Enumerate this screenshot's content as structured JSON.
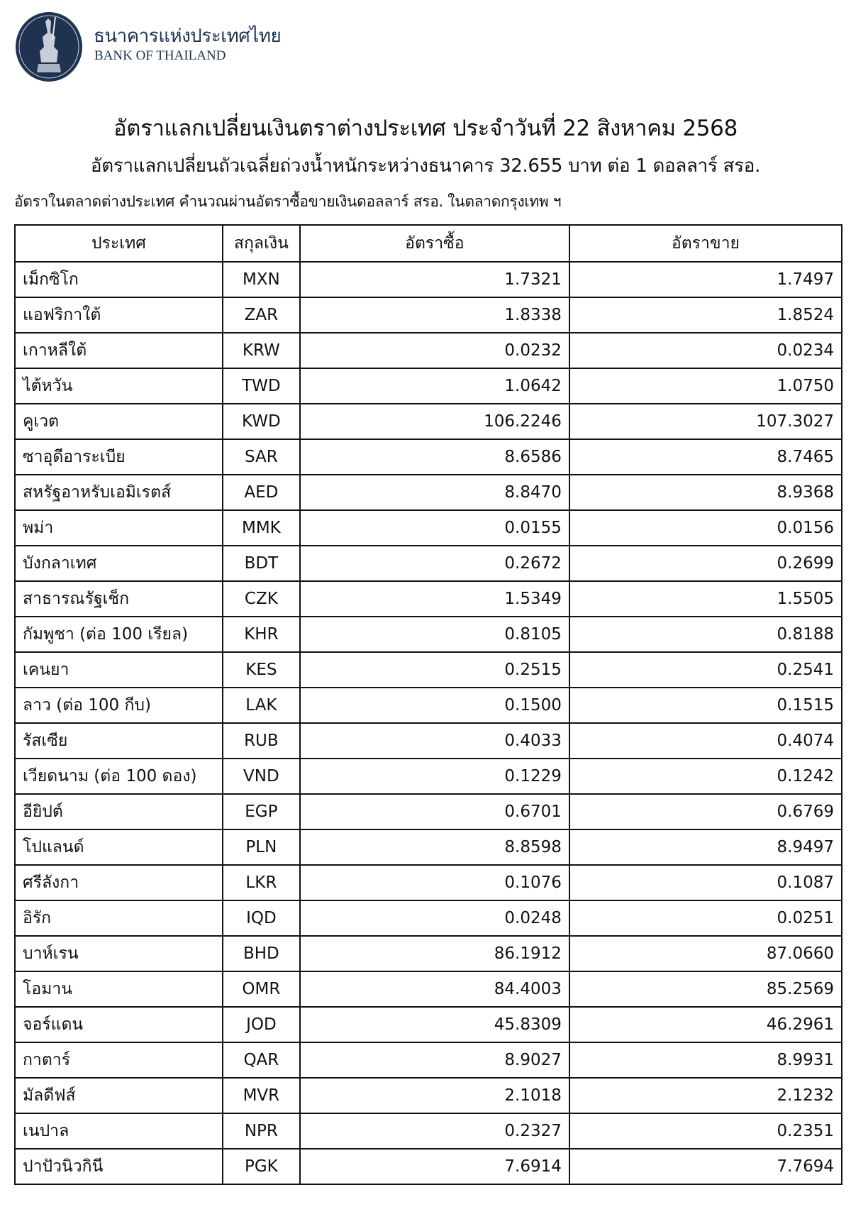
{
  "header": {
    "bank_name_th": "ธนาคารแห่งประเทศไทย",
    "bank_name_en": "BANK OF THAILAND",
    "logo_icon": "bank-of-thailand-seal",
    "brand_color": "#1f3350"
  },
  "title": "อัตราแลกเปลี่ยนเงินตราต่างประเทศ ประจำวันที่ 22 สิงหาคม 2568",
  "subtitle": "อัตราแลกเปลี่ยนถัวเฉลี่ยถ่วงน้ำหนักระหว่างธนาคาร 32.655 บาท ต่อ 1 ดอลลาร์ สรอ.",
  "note": "อัตราในตลาดต่างประเทศ คำนวณผ่านอัตราซื้อขายเงินดอลลาร์ สรอ. ในตลาดกรุงเทพ ฯ",
  "table": {
    "headers": [
      "ประเทศ",
      "สกุลเงิน",
      "อัตราซื้อ",
      "อัตราขาย"
    ],
    "rows": [
      [
        "เม็กซิโก",
        "MXN",
        "1.7321",
        "1.7497"
      ],
      [
        "แอฟริกาใต้",
        "ZAR",
        "1.8338",
        "1.8524"
      ],
      [
        "เกาหลีใต้",
        "KRW",
        "0.0232",
        "0.0234"
      ],
      [
        "ไต้หวัน",
        "TWD",
        "1.0642",
        "1.0750"
      ],
      [
        "คูเวต",
        "KWD",
        "106.2246",
        "107.3027"
      ],
      [
        "ซาอุดีอาระเบีย",
        "SAR",
        "8.6586",
        "8.7465"
      ],
      [
        "สหรัฐอาหรับเอมิเรตส์",
        "AED",
        "8.8470",
        "8.9368"
      ],
      [
        "พม่า",
        "MMK",
        "0.0155",
        "0.0156"
      ],
      [
        "บังกลาเทศ",
        "BDT",
        "0.2672",
        "0.2699"
      ],
      [
        "สาธารณรัฐเช็ก",
        "CZK",
        "1.5349",
        "1.5505"
      ],
      [
        "กัมพูชา (ต่อ 100 เรียล)",
        "KHR",
        "0.8105",
        "0.8188"
      ],
      [
        "เคนยา",
        "KES",
        "0.2515",
        "0.2541"
      ],
      [
        "ลาว (ต่อ 100 กีบ)",
        "LAK",
        "0.1500",
        "0.1515"
      ],
      [
        "รัสเซีย",
        "RUB",
        "0.4033",
        "0.4074"
      ],
      [
        "เวียดนาม (ต่อ 100 ดอง)",
        "VND",
        "0.1229",
        "0.1242"
      ],
      [
        "อียิปต์",
        "EGP",
        "0.6701",
        "0.6769"
      ],
      [
        "โปแลนด์",
        "PLN",
        "8.8598",
        "8.9497"
      ],
      [
        "ศรีลังกา",
        "LKR",
        "0.1076",
        "0.1087"
      ],
      [
        "อิรัก",
        "IQD",
        "0.0248",
        "0.0251"
      ],
      [
        "บาห์เรน",
        "BHD",
        "86.1912",
        "87.0660"
      ],
      [
        "โอมาน",
        "OMR",
        "84.4003",
        "85.2569"
      ],
      [
        "จอร์แดน",
        "JOD",
        "45.8309",
        "46.2961"
      ],
      [
        "กาตาร์",
        "QAR",
        "8.9027",
        "8.9931"
      ],
      [
        "มัลดีฟส์",
        "MVR",
        "2.1018",
        "2.1232"
      ],
      [
        "เนปาล",
        "NPR",
        "0.2327",
        "0.2351"
      ],
      [
        "ปาปัวนิวกินี",
        "PGK",
        "7.6914",
        "7.7694"
      ]
    ]
  }
}
